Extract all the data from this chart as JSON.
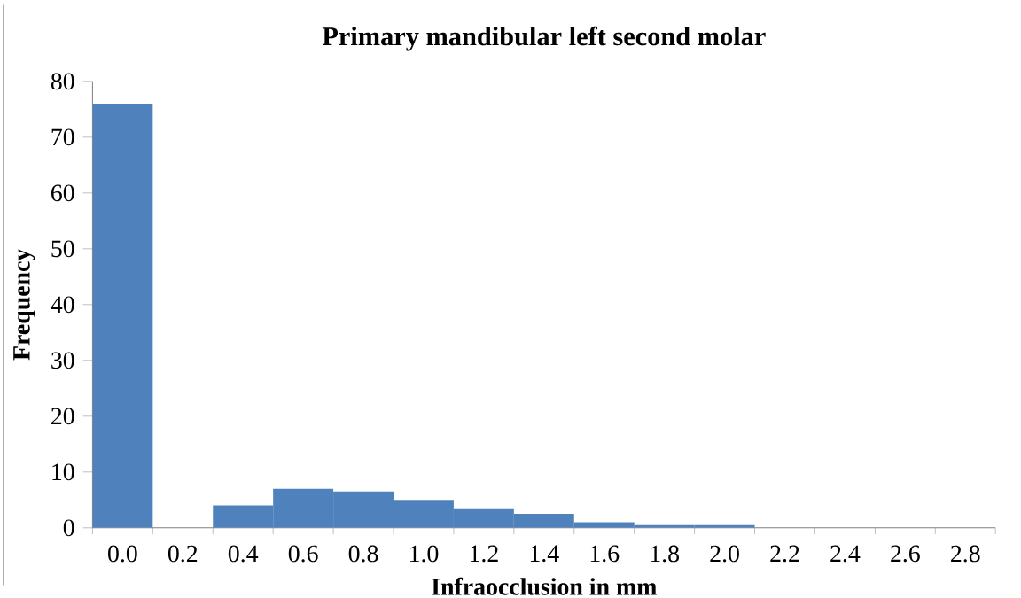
{
  "chart_data": {
    "type": "bar",
    "title": "Primary  mandibular  left second molar",
    "xlabel": "Infraocclusion in mm",
    "ylabel": "Frequency",
    "categories": [
      "0.0",
      "0.2",
      "0.4",
      "0.6",
      "0.8",
      "1.0",
      "1.2",
      "1.4",
      "1.6",
      "1.8",
      "2.0",
      "2.2",
      "2.4",
      "2.6",
      "2.8"
    ],
    "values": [
      76,
      0,
      4,
      7,
      6.5,
      5,
      3.5,
      2.5,
      1,
      0.5,
      0.5,
      0,
      0,
      0,
      0
    ],
    "color": "#4f81bd",
    "ylim": [
      0,
      80
    ],
    "yticks": [
      0,
      10,
      20,
      30,
      40,
      50,
      60,
      70,
      80
    ]
  }
}
